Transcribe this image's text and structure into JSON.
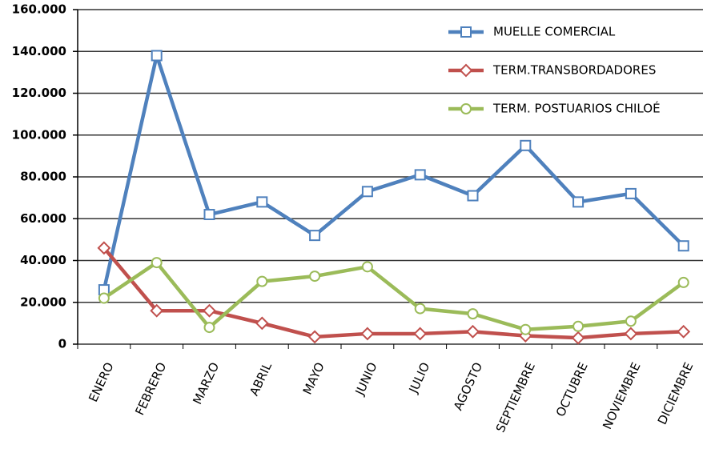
{
  "chart_data": {
    "type": "line",
    "categories": [
      "ENERO",
      "FEBRERO",
      "MARZO",
      "ABRIL",
      "MAYO",
      "JUNIO",
      "JULIO",
      "AGOSTO",
      "SEPTIEMBRE",
      "OCTUBRE",
      "NOVIEMBRE",
      "DICIEMBRE"
    ],
    "series": [
      {
        "name": "MUELLE COMERCIAL",
        "color": "#4f81bd",
        "marker": "square",
        "values": [
          26000,
          138000,
          62000,
          68000,
          52000,
          73000,
          81000,
          71000,
          95000,
          68000,
          72000,
          47000
        ]
      },
      {
        "name": "TERM.TRANSBORDADORES",
        "color": "#c0504d",
        "marker": "diamond",
        "values": [
          46000,
          16000,
          16000,
          10000,
          3500,
          5000,
          5000,
          6000,
          4000,
          3000,
          5000,
          6000
        ]
      },
      {
        "name": "TERM. POSTUARIOS CHILOÉ",
        "color": "#9bbb59",
        "marker": "circle",
        "values": [
          22000,
          39000,
          8000,
          30000,
          32500,
          37000,
          17000,
          14500,
          7000,
          8500,
          11000,
          29500
        ]
      }
    ],
    "ylim": [
      0,
      160000
    ],
    "yticks": [
      0,
      {
        "value": 20000,
        "label": "20.000"
      },
      {
        "value": 40000,
        "label": "40.000"
      },
      {
        "value": 60000,
        "label": "60.000"
      },
      {
        "value": 80000,
        "label": "80.000"
      },
      {
        "value": 100000,
        "label": "100.000"
      },
      {
        "value": 120000,
        "label": "120.000"
      },
      {
        "value": 140000,
        "label": "140.000"
      },
      {
        "value": 160000,
        "label": "160.000"
      }
    ],
    "grid": true,
    "legend": "top-right"
  }
}
